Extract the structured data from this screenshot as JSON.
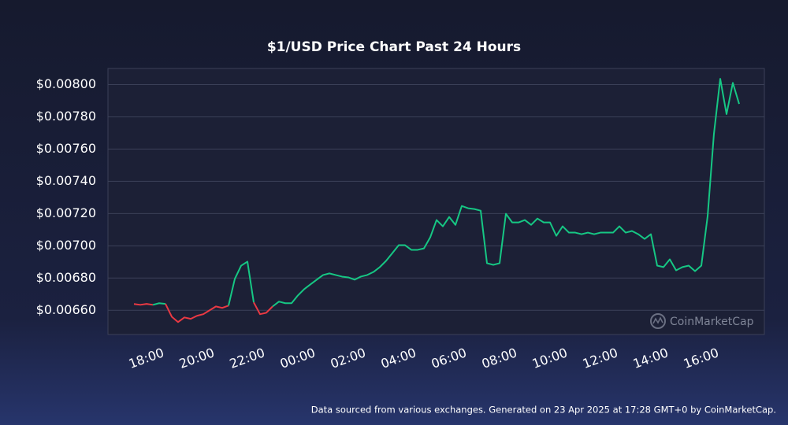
{
  "chart_data": {
    "type": "line",
    "title": "$1/USD Price Chart Past 24 Hours",
    "x": [
      "17:30",
      "17:45",
      "18:00",
      "18:15",
      "18:30",
      "18:45",
      "19:00",
      "19:15",
      "19:30",
      "19:45",
      "20:00",
      "20:15",
      "20:30",
      "20:45",
      "21:00",
      "21:15",
      "21:30",
      "21:45",
      "22:00",
      "22:15",
      "22:30",
      "22:45",
      "23:00",
      "23:15",
      "23:30",
      "23:45",
      "00:00",
      "00:15",
      "00:30",
      "00:45",
      "01:00",
      "01:15",
      "01:30",
      "01:45",
      "02:00",
      "02:15",
      "02:30",
      "02:45",
      "03:00",
      "03:15",
      "03:30",
      "03:45",
      "04:00",
      "04:15",
      "04:30",
      "04:45",
      "05:00",
      "05:15",
      "05:30",
      "05:45",
      "06:00",
      "06:15",
      "06:30",
      "06:45",
      "07:00",
      "07:15",
      "07:30",
      "07:45",
      "08:00",
      "08:15",
      "08:30",
      "08:45",
      "09:00",
      "09:15",
      "09:30",
      "09:45",
      "10:00",
      "10:15",
      "10:30",
      "10:45",
      "11:00",
      "11:15",
      "11:30",
      "11:45",
      "12:00",
      "12:15",
      "12:30",
      "12:45",
      "13:00",
      "13:15",
      "13:30",
      "13:45",
      "14:00",
      "14:15",
      "14:30",
      "14:45",
      "15:00",
      "15:15",
      "15:30",
      "15:45",
      "16:00",
      "16:15",
      "16:30",
      "16:45",
      "17:00",
      "17:15",
      "17:30"
    ],
    "values": [
      0.006639,
      0.006634,
      0.00664,
      0.006634,
      0.006644,
      0.00664,
      0.00656,
      0.006527,
      0.006556,
      0.006547,
      0.006566,
      0.006576,
      0.0066,
      0.006624,
      0.006615,
      0.006629,
      0.006795,
      0.006877,
      0.006902,
      0.006649,
      0.006576,
      0.006585,
      0.006624,
      0.006654,
      0.006644,
      0.006644,
      0.006692,
      0.006731,
      0.006761,
      0.00679,
      0.006819,
      0.006829,
      0.006819,
      0.006809,
      0.006804,
      0.00679,
      0.006809,
      0.006819,
      0.006838,
      0.006868,
      0.006907,
      0.006955,
      0.007004,
      0.007004,
      0.006975,
      0.006975,
      0.006984,
      0.007053,
      0.00716,
      0.007121,
      0.007179,
      0.00713,
      0.007247,
      0.007233,
      0.007228,
      0.007218,
      0.006892,
      0.006882,
      0.006892,
      0.007199,
      0.007145,
      0.007145,
      0.00716,
      0.00713,
      0.007169,
      0.007145,
      0.007145,
      0.007062,
      0.007121,
      0.007082,
      0.007082,
      0.007072,
      0.007082,
      0.007072,
      0.007082,
      0.007082,
      0.007082,
      0.007121,
      0.007082,
      0.007092,
      0.007072,
      0.007043,
      0.007072,
      0.006877,
      0.006868,
      0.006916,
      0.006848,
      0.006868,
      0.006877,
      0.006843,
      0.006877,
      0.007184,
      0.007695,
      0.008036,
      0.007817,
      0.008011,
      0.00788
    ],
    "up_color": "#16c784",
    "down_color": "#ea3943",
    "ylim": [
      0.00645,
      0.0081
    ],
    "yticks": [
      {
        "value": 0.0066,
        "label": "$0.00660"
      },
      {
        "value": 0.0068,
        "label": "$0.00680"
      },
      {
        "value": 0.007,
        "label": "$0.00700"
      },
      {
        "value": 0.0072,
        "label": "$0.00720"
      },
      {
        "value": 0.0074,
        "label": "$0.00740"
      },
      {
        "value": 0.0076,
        "label": "$0.00760"
      },
      {
        "value": 0.0078,
        "label": "$0.00780"
      },
      {
        "value": 0.008,
        "label": "$0.00800"
      }
    ],
    "xticks": [
      "18:00",
      "20:00",
      "22:00",
      "00:00",
      "02:00",
      "04:00",
      "06:00",
      "08:00",
      "10:00",
      "12:00",
      "14:00",
      "16:00"
    ],
    "grid": true,
    "watermark": "CoinMarketCap",
    "footnote": "Data sourced from various exchanges. Generated on 23 Apr 2025 at 17:28 GMT+0 by CoinMarketCap."
  }
}
